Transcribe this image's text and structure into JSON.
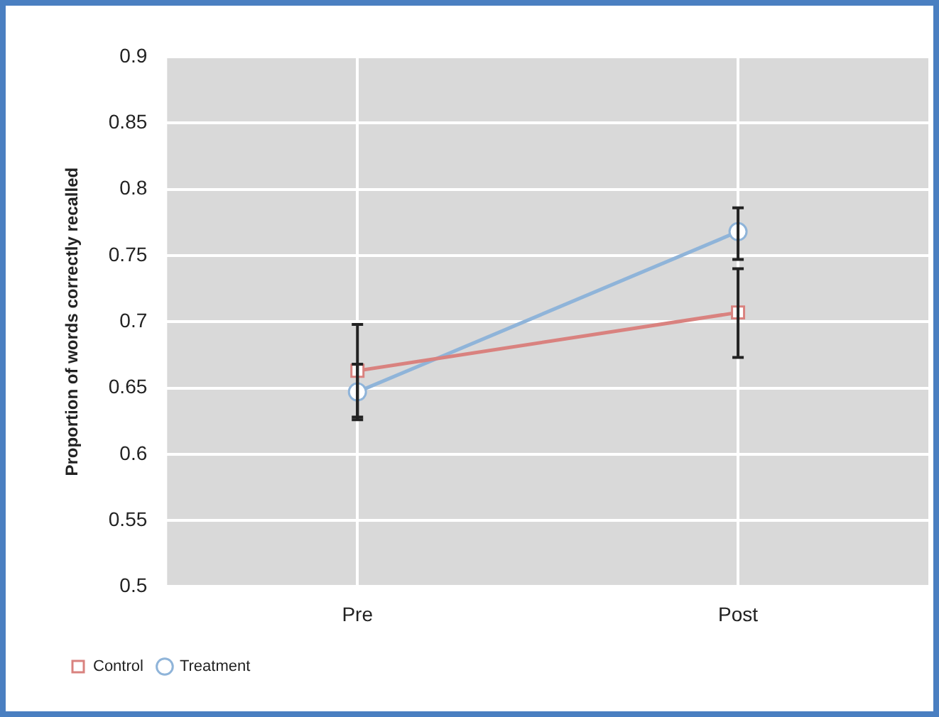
{
  "chart_data": {
    "type": "line",
    "ylabel": "Proportion of words correctly recalled",
    "categories": [
      "Pre",
      "Post"
    ],
    "series": [
      {
        "name": "Control",
        "color": "#d9827f",
        "values": [
          0.663,
          0.707
        ],
        "marker": "square",
        "errors": [
          [
            0.628,
            0.698
          ],
          [
            0.673,
            0.74
          ]
        ]
      },
      {
        "name": "Treatment",
        "color": "#8fb4d9",
        "values": [
          0.647,
          0.768
        ],
        "marker": "circle",
        "errors": [
          [
            0.626,
            0.668
          ],
          [
            0.747,
            0.786
          ]
        ]
      }
    ],
    "ylim": [
      0.5,
      0.9
    ],
    "yticks": [
      0.5,
      0.55,
      0.6,
      0.65,
      0.7,
      0.75,
      0.8,
      0.85,
      0.9
    ],
    "grid": true,
    "legend": "bottom left",
    "line_style": "solid"
  }
}
